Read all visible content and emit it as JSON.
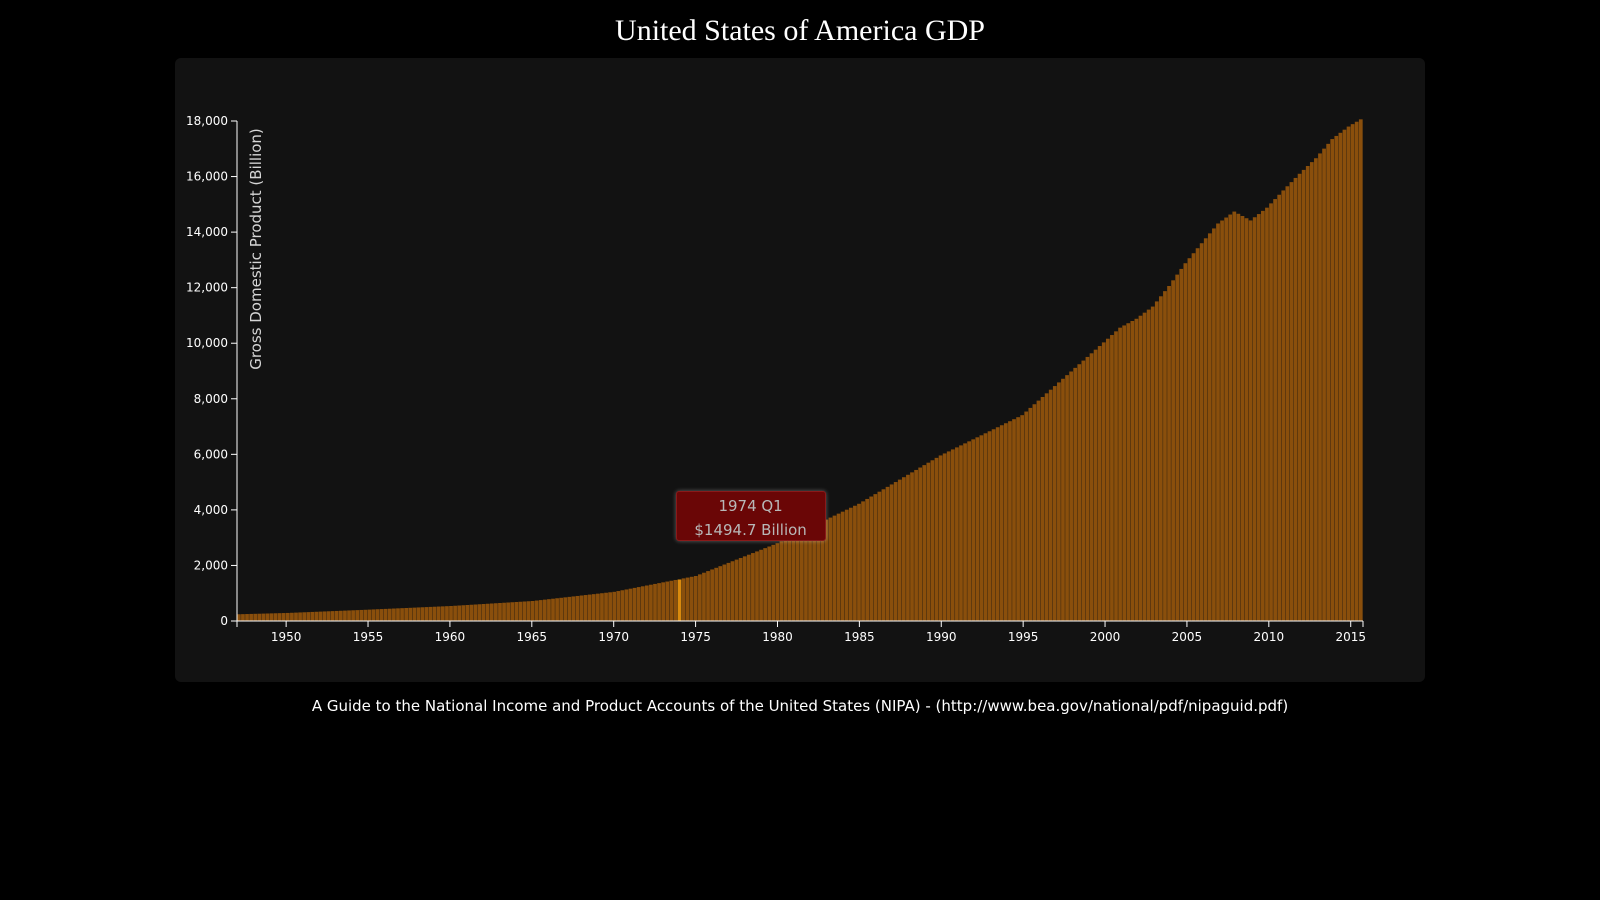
{
  "title": "United States of America GDP",
  "footnote": "A Guide to the National Income and Product Accounts of the United States (NIPA) - (http://www.bea.gov/national/pdf/nipaguid.pdf)",
  "tooltip": {
    "period": "1974 Q1",
    "value_text": "$1494.7 Billion"
  },
  "colors": {
    "background": "#000000",
    "panel": "#121212",
    "bar": "#8a4f0c",
    "bar_highlight": "#d98a0e",
    "tooltip_bg": "#6a0606",
    "axis": "#ffffff"
  },
  "chart_data": {
    "type": "bar",
    "ylabel": "Gross Domestic Product (Billion)",
    "ylim": [
      0,
      18000
    ],
    "xlim": [
      1947,
      2015.75
    ],
    "y_ticks": [
      0,
      2000,
      4000,
      6000,
      8000,
      10000,
      12000,
      14000,
      16000,
      18000
    ],
    "y_tick_labels": [
      "0",
      "2,000",
      "4,000",
      "6,000",
      "8,000",
      "10,000",
      "12,000",
      "14,000",
      "16,000",
      "18,000"
    ],
    "x_ticks": [
      1950,
      1955,
      1960,
      1965,
      1970,
      1975,
      1980,
      1985,
      1990,
      1995,
      2000,
      2005,
      2010,
      2015
    ],
    "x_tick_labels": [
      "1950",
      "1955",
      "1960",
      "1965",
      "1970",
      "1975",
      "1980",
      "1985",
      "1990",
      "1995",
      "2000",
      "2005",
      "2010",
      "2015"
    ],
    "frequency": "quarterly",
    "highlighted": {
      "year": 1974,
      "quarter": 1,
      "value": 1494.7
    },
    "annual_anchor_values": {
      "years": [
        1947,
        1950,
        1955,
        1960,
        1965,
        1970,
        1975,
        1980,
        1985,
        1990,
        1995,
        2000,
        2001,
        2002,
        2003,
        2004,
        2005,
        2006,
        2007,
        2008,
        2009,
        2010,
        2011,
        2012,
        2013,
        2014,
        2015,
        2015.75
      ],
      "values": [
        243,
        290,
        410,
        540,
        720,
        1050,
        1620,
        2800,
        4220,
        5960,
        7410,
        10030,
        10560,
        10880,
        11320,
        12060,
        12880,
        13600,
        14310,
        14740,
        14420,
        14880,
        15500,
        16100,
        16660,
        17350,
        17800,
        18060
      ]
    }
  }
}
